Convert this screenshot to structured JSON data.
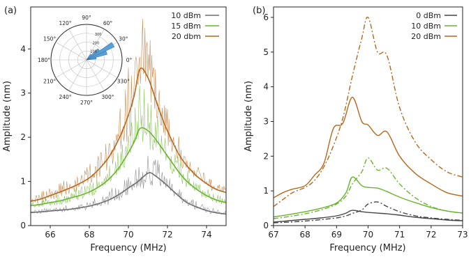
{
  "chart_data": [
    {
      "panel_label": "(a)",
      "type": "line",
      "xlabel": "Frequency (MHz)",
      "ylabel": "Amplitude (nm)",
      "xlim": [
        65,
        75
      ],
      "ylim": [
        0,
        4.95
      ],
      "xticks": [
        66,
        68,
        70,
        72,
        74
      ],
      "yticks": [
        0,
        1,
        2,
        3,
        4
      ],
      "grid": false,
      "legend_position": "top-right",
      "series": [
        {
          "name": "10 dBm",
          "color": "#6e6e72",
          "x": [
            65,
            65.5,
            66,
            66.5,
            67,
            67.5,
            68,
            68.5,
            69,
            69.5,
            70,
            70.5,
            70.8,
            71.1,
            71.4,
            71.8,
            72.2,
            72.6,
            73,
            73.5,
            74,
            74.5,
            75
          ],
          "smooth": [
            0.3,
            0.31,
            0.33,
            0.35,
            0.37,
            0.4,
            0.44,
            0.5,
            0.58,
            0.7,
            0.85,
            1.0,
            1.12,
            1.2,
            1.12,
            0.98,
            0.82,
            0.66,
            0.52,
            0.42,
            0.34,
            0.29,
            0.26
          ],
          "peak": [
            0.36,
            0.38,
            0.4,
            0.44,
            0.47,
            0.52,
            0.58,
            0.68,
            0.8,
            1.0,
            1.22,
            1.45,
            1.65,
            1.72,
            1.55,
            1.3,
            1.08,
            0.86,
            0.68,
            0.55,
            0.44,
            0.38,
            0.33
          ]
        },
        {
          "name": "15 dBm",
          "color": "#6ab42d",
          "x": [
            65,
            65.5,
            66,
            66.5,
            67,
            67.5,
            68,
            68.5,
            69,
            69.5,
            70,
            70.3,
            70.6,
            71,
            71.4,
            71.8,
            72.2,
            72.6,
            73,
            73.5,
            74,
            74.5,
            75
          ],
          "smooth": [
            0.45,
            0.48,
            0.52,
            0.56,
            0.62,
            0.68,
            0.76,
            0.88,
            1.05,
            1.3,
            1.65,
            1.9,
            2.2,
            2.15,
            1.95,
            1.7,
            1.45,
            1.2,
            1.0,
            0.82,
            0.68,
            0.58,
            0.52
          ],
          "peak": [
            0.55,
            0.6,
            0.66,
            0.72,
            0.8,
            0.88,
            0.98,
            1.15,
            1.4,
            1.75,
            2.3,
            2.7,
            3.3,
            2.95,
            2.65,
            2.25,
            1.9,
            1.55,
            1.28,
            1.05,
            0.86,
            0.72,
            0.64
          ]
        },
        {
          "name": "20 dbm",
          "color": "#b8671b",
          "x": [
            65,
            65.5,
            66,
            66.5,
            67,
            67.5,
            68,
            68.5,
            69,
            69.5,
            70,
            70.3,
            70.6,
            71,
            71.4,
            71.8,
            72.2,
            72.6,
            73,
            73.5,
            74,
            74.5,
            75
          ],
          "smooth": [
            0.55,
            0.6,
            0.68,
            0.76,
            0.85,
            0.95,
            1.08,
            1.28,
            1.55,
            1.95,
            2.5,
            2.95,
            3.55,
            3.35,
            2.85,
            2.35,
            1.95,
            1.6,
            1.35,
            1.12,
            0.95,
            0.82,
            0.75
          ],
          "peak": [
            0.7,
            0.78,
            0.88,
            0.98,
            1.1,
            1.25,
            1.42,
            1.7,
            2.1,
            2.7,
            3.6,
            4.2,
            4.85,
            4.4,
            3.7,
            3.0,
            2.45,
            2.0,
            1.65,
            1.36,
            1.14,
            0.98,
            0.9
          ]
        }
      ],
      "inset": {
        "type": "polar-histogram",
        "angle_labels": [
          "0°",
          "30°",
          "60°",
          "90°",
          "120°",
          "150°",
          "180°",
          "210°",
          "240°",
          "270°",
          "300°",
          "330°"
        ],
        "radial_tick_labels": [
          "100",
          "200",
          "300"
        ],
        "rmax": 400,
        "bars": [
          {
            "angle_start": 5,
            "angle_end": 15,
            "value": 110
          },
          {
            "angle_start": 15,
            "angle_end": 25,
            "value": 240
          },
          {
            "angle_start": 25,
            "angle_end": 35,
            "value": 345
          },
          {
            "angle_start": 35,
            "angle_end": 45,
            "value": 180
          },
          {
            "angle_start": 45,
            "angle_end": 55,
            "value": 80
          }
        ],
        "bar_color": "#5aa0d8"
      }
    },
    {
      "panel_label": "(b)",
      "type": "line",
      "xlabel": "Frequency (MHz)",
      "ylabel": "Amplitude (nm)",
      "xlim": [
        67,
        73
      ],
      "ylim": [
        0,
        6.3
      ],
      "xticks": [
        67,
        68,
        69,
        70,
        71,
        72,
        73
      ],
      "yticks": [
        0,
        1,
        2,
        3,
        4,
        5,
        6
      ],
      "grid": false,
      "legend_position": "top-right",
      "series": [
        {
          "name": "0 dBm",
          "color": "#444444",
          "x": [
            67,
            67.5,
            68,
            68.5,
            69,
            69.3,
            69.5,
            69.8,
            70,
            70.3,
            70.6,
            71,
            71.5,
            72,
            72.5,
            73
          ],
          "solid": [
            0.1,
            0.14,
            0.18,
            0.22,
            0.28,
            0.36,
            0.44,
            0.4,
            0.38,
            0.36,
            0.34,
            0.3,
            0.24,
            0.2,
            0.16,
            0.14
          ],
          "dashdot": [
            0.08,
            0.1,
            0.13,
            0.17,
            0.22,
            0.28,
            0.35,
            0.45,
            0.62,
            0.68,
            0.55,
            0.4,
            0.28,
            0.22,
            0.18,
            0.15
          ]
        },
        {
          "name": "10 dBm",
          "color": "#6ab42d",
          "x": [
            67,
            67.5,
            68,
            68.5,
            69,
            69.3,
            69.5,
            69.8,
            70,
            70.3,
            70.6,
            71,
            71.5,
            72,
            72.5,
            73
          ],
          "solid": [
            0.25,
            0.32,
            0.4,
            0.5,
            0.65,
            0.95,
            1.4,
            1.15,
            1.1,
            1.08,
            0.98,
            0.82,
            0.66,
            0.52,
            0.42,
            0.36
          ],
          "dashdot": [
            0.2,
            0.26,
            0.34,
            0.45,
            0.62,
            0.85,
            1.2,
            1.55,
            1.95,
            1.6,
            1.65,
            1.2,
            0.8,
            0.55,
            0.42,
            0.36
          ]
        },
        {
          "name": "20 dBm",
          "color": "#b8671b",
          "x": [
            67,
            67.3,
            67.6,
            68,
            68.3,
            68.6,
            68.9,
            69.2,
            69.5,
            69.8,
            70,
            70.3,
            70.6,
            71,
            71.5,
            72,
            72.5,
            73
          ],
          "solid": [
            0.8,
            0.95,
            1.05,
            1.15,
            1.45,
            1.8,
            2.8,
            2.95,
            3.7,
            3.0,
            2.9,
            2.6,
            2.7,
            2.0,
            1.5,
            1.2,
            0.95,
            0.85
          ],
          "dashdot": [
            0.55,
            0.75,
            0.95,
            1.1,
            1.3,
            1.7,
            2.3,
            3.1,
            4.3,
            5.4,
            6.0,
            5.0,
            4.9,
            3.4,
            2.4,
            1.9,
            1.55,
            1.4
          ]
        }
      ]
    }
  ]
}
